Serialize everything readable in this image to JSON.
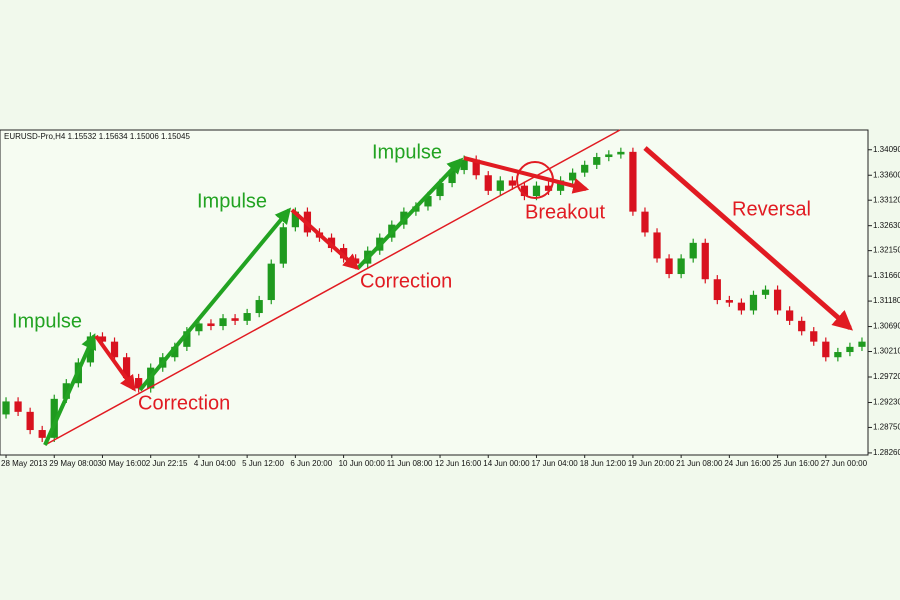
{
  "chart_data": {
    "type": "candlestick",
    "title": "EURUSD-Pro,H4  1.15532 1.15634 1.15006 1.15045",
    "annotations": [
      "Impulse",
      "Correction",
      "Impulse",
      "Correction",
      "Impulse",
      "Breakout",
      "Reversal"
    ],
    "categories": [
      "28 May 2013",
      null,
      null,
      null,
      "29 May 08:00",
      null,
      null,
      null,
      "30 May 16:00",
      null,
      null,
      null,
      "2 Jun 22:15",
      null,
      null,
      null,
      "4 Jun 04:00",
      null,
      null,
      null,
      "5 Jun 12:00",
      null,
      null,
      null,
      "6 Jun 20:00",
      null,
      null,
      null,
      "10 Jun 00:00",
      null,
      null,
      null,
      "11 Jun 08:00",
      null,
      null,
      null,
      "12 Jun 16:00",
      null,
      null,
      null,
      "14 Jun 00:00",
      null,
      null,
      null,
      "17 Jun 04:00",
      null,
      null,
      null,
      "18 Jun 12:00",
      null,
      null,
      null,
      "19 Jun 20:00",
      null,
      null,
      null,
      "21 Jun 08:00",
      null,
      null,
      null,
      "24 Jun 16:00",
      null,
      null,
      null,
      "25 Jun 16:00",
      null,
      null,
      null,
      "27 Jun 00:00",
      null,
      null,
      null
    ],
    "open": [
      1.29,
      1.2925,
      1.2905,
      1.287,
      1.2855,
      1.293,
      1.296,
      1.3,
      1.305,
      1.304,
      1.301,
      1.297,
      1.295,
      1.299,
      1.301,
      1.303,
      1.306,
      1.3075,
      1.307,
      1.3085,
      1.308,
      1.3095,
      1.312,
      1.319,
      1.326,
      1.329,
      1.325,
      1.324,
      1.322,
      1.32,
      1.319,
      1.3215,
      1.324,
      1.3265,
      1.329,
      1.33,
      1.332,
      1.3345,
      1.337,
      1.339,
      1.336,
      1.333,
      1.335,
      1.334,
      1.332,
      1.334,
      1.333,
      1.335,
      1.3365,
      1.338,
      1.3395,
      1.34,
      1.3405,
      1.329,
      1.325,
      1.32,
      1.317,
      1.32,
      1.323,
      1.316,
      1.312,
      1.3115,
      1.31,
      1.313,
      1.314,
      1.31,
      1.308,
      1.306,
      1.304,
      1.301,
      1.302,
      1.303
    ],
    "high": [
      1.2933,
      1.2933,
      1.2913,
      1.2878,
      1.2938,
      1.2968,
      1.3008,
      1.3058,
      1.3058,
      1.3048,
      1.3018,
      1.2978,
      1.2998,
      1.3018,
      1.3038,
      1.3068,
      1.3083,
      1.3083,
      1.3093,
      1.3093,
      1.3103,
      1.3128,
      1.3198,
      1.3268,
      1.3298,
      1.3298,
      1.3258,
      1.3248,
      1.3228,
      1.3208,
      1.3223,
      1.3248,
      1.3273,
      1.3298,
      1.3308,
      1.3328,
      1.3353,
      1.3378,
      1.3398,
      1.3398,
      1.3368,
      1.3358,
      1.3358,
      1.3348,
      1.3348,
      1.3348,
      1.3358,
      1.3373,
      1.3388,
      1.3403,
      1.3408,
      1.3413,
      1.3413,
      1.3298,
      1.3258,
      1.3208,
      1.3208,
      1.3238,
      1.3238,
      1.3168,
      1.3128,
      1.3123,
      1.3138,
      1.3148,
      1.3148,
      1.3108,
      1.3088,
      1.3068,
      1.3048,
      1.3028,
      1.3038,
      1.3048
    ],
    "low": [
      1.2892,
      1.2897,
      1.2862,
      1.2847,
      1.2847,
      1.2922,
      1.2952,
      1.2992,
      1.3032,
      1.3002,
      1.2962,
      1.2942,
      1.2942,
      1.2982,
      1.3002,
      1.3022,
      1.3052,
      1.3062,
      1.3062,
      1.3072,
      1.3072,
      1.3087,
      1.3112,
      1.3182,
      1.3252,
      1.3242,
      1.3232,
      1.3212,
      1.3192,
      1.3182,
      1.3182,
      1.3207,
      1.3232,
      1.3257,
      1.3282,
      1.3292,
      1.3312,
      1.3337,
      1.3362,
      1.3352,
      1.3322,
      1.3322,
      1.3332,
      1.3312,
      1.3312,
      1.3322,
      1.3322,
      1.3342,
      1.3357,
      1.3372,
      1.3387,
      1.3392,
      1.3282,
      1.3242,
      1.3192,
      1.3162,
      1.3162,
      1.3192,
      1.3152,
      1.3112,
      1.3107,
      1.3092,
      1.3092,
      1.3122,
      1.3092,
      1.3072,
      1.3052,
      1.3032,
      1.3002,
      1.3002,
      1.3012,
      1.3022
    ],
    "close": [
      1.2925,
      1.2905,
      1.287,
      1.2855,
      1.293,
      1.296,
      1.3,
      1.305,
      1.304,
      1.301,
      1.297,
      1.295,
      1.299,
      1.301,
      1.303,
      1.306,
      1.3075,
      1.307,
      1.3085,
      1.308,
      1.3095,
      1.312,
      1.319,
      1.326,
      1.329,
      1.325,
      1.324,
      1.322,
      1.32,
      1.319,
      1.3215,
      1.324,
      1.3265,
      1.329,
      1.33,
      1.332,
      1.3345,
      1.337,
      1.339,
      1.336,
      1.333,
      1.335,
      1.334,
      1.332,
      1.334,
      1.333,
      1.335,
      1.3365,
      1.338,
      1.3395,
      1.34,
      1.3405,
      1.329,
      1.325,
      1.32,
      1.317,
      1.32,
      1.323,
      1.316,
      1.312,
      1.3115,
      1.31,
      1.313,
      1.314,
      1.31,
      1.308,
      1.306,
      1.304,
      1.301,
      1.302,
      1.303,
      1.304
    ],
    "up_color": "#1f9a1f",
    "down_color": "#d8121f",
    "ylim": [
      1.2822,
      1.3447
    ],
    "yticks": [
      {
        "value": 1.3409,
        "label": "1.34090"
      },
      {
        "value": 1.336,
        "label": "1.33600"
      },
      {
        "value": 1.3312,
        "label": "1.33120"
      },
      {
        "value": 1.3263,
        "label": "1.32630"
      },
      {
        "value": 1.3215,
        "label": "1.32150"
      },
      {
        "value": 1.3166,
        "label": "1.31660"
      },
      {
        "value": 1.3118,
        "label": "1.31180"
      },
      {
        "value": 1.3069,
        "label": "1.30690"
      },
      {
        "value": 1.3021,
        "label": "1.30210"
      },
      {
        "value": 1.2972,
        "label": "1.29720"
      },
      {
        "value": 1.2923,
        "label": "1.29230"
      },
      {
        "value": 1.2875,
        "label": "1.28750"
      },
      {
        "value": 1.2826,
        "label": "1.28260"
      }
    ]
  }
}
